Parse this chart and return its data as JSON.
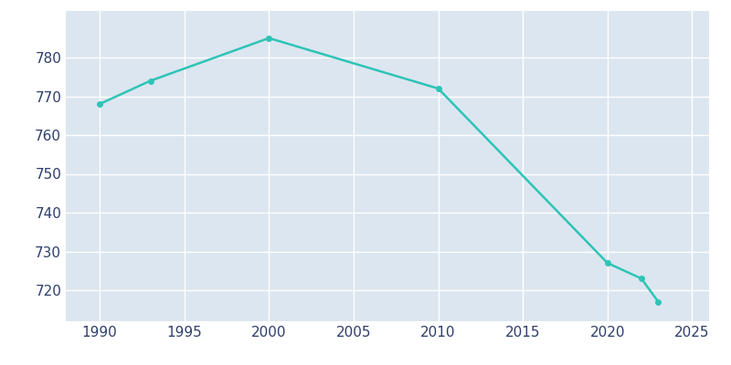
{
  "years": [
    1990,
    1993,
    2000,
    2010,
    2020,
    2022,
    2023
  ],
  "population": [
    768,
    774,
    785,
    772,
    727,
    723,
    717
  ],
  "line_color": "#2ec4b6",
  "plot_background_color": "#dce6f0",
  "figure_background_color": "#ffffff",
  "grid_color": "#ffffff",
  "text_color": "#2e3d6b",
  "xlim": [
    1988,
    2026
  ],
  "ylim": [
    712,
    792
  ],
  "yticks": [
    720,
    730,
    740,
    750,
    760,
    770,
    780
  ],
  "xticks": [
    1990,
    1995,
    2000,
    2005,
    2010,
    2015,
    2020,
    2025
  ],
  "line_width": 1.8,
  "marker": "o",
  "marker_size": 4,
  "tick_labelsize": 11
}
